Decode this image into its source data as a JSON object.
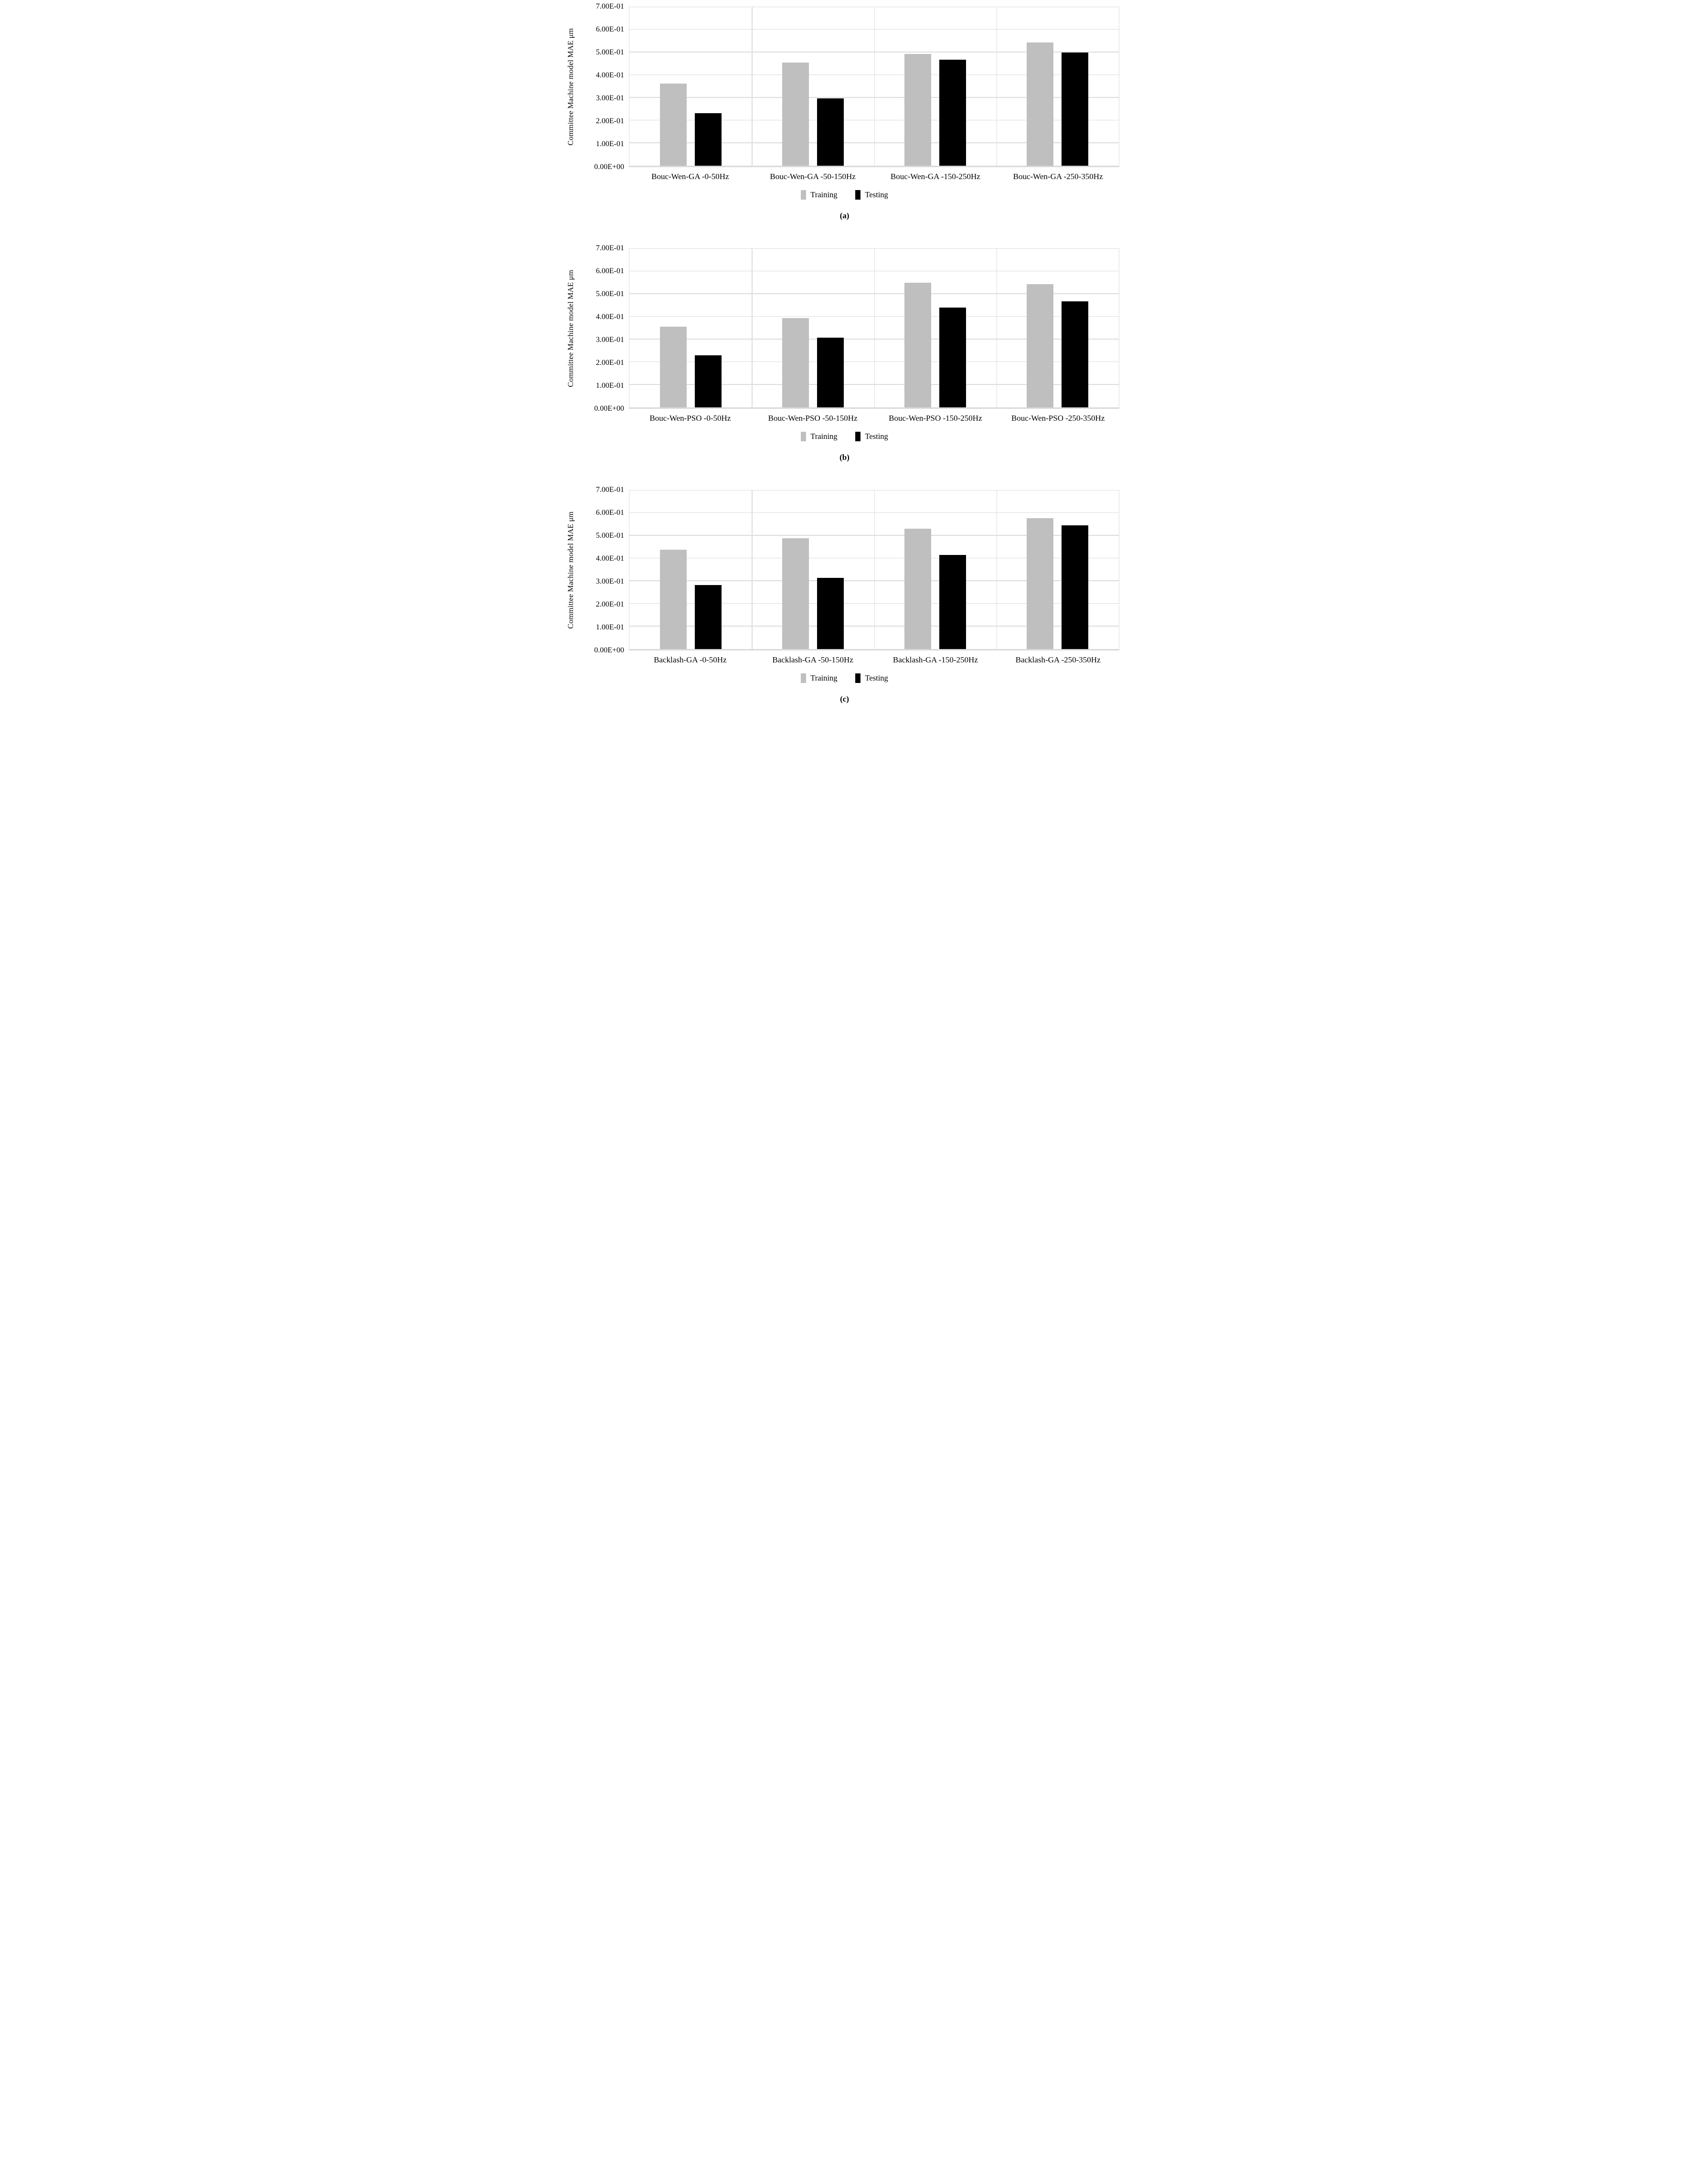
{
  "page": {
    "background": "#ffffff"
  },
  "colors": {
    "training": "#BFBFBF",
    "testing": "#000000",
    "gridline": "#DCDCDC",
    "axis_line": "#D9D9D9",
    "text": "#000000"
  },
  "legend": [
    {
      "name": "Training",
      "color_key": "training"
    },
    {
      "name": "Testing",
      "color_key": "testing"
    }
  ],
  "y_axis": {
    "title": "Committee Machine model MAE μm",
    "min": 0,
    "max": 0.7,
    "tick_labels": [
      "0.00E+00",
      "1.00E-01",
      "2.00E-01",
      "3.00E-01",
      "4.00E-01",
      "5.00E-01",
      "6.00E-01",
      "7.00E-01"
    ]
  },
  "chart_data": [
    {
      "type": "bar",
      "caption": "(a)",
      "title": "",
      "xlabel": "",
      "ylabel": "Committee Machine model MAE μm",
      "ylim": [
        0,
        0.7
      ],
      "grid": true,
      "legend_position": "bottom",
      "categories": [
        "Bouc-Wen-GA -0-50Hz",
        "Bouc-Wen-GA -50-150Hz",
        "Bouc-Wen-GA -150-250Hz",
        "Bouc-Wen-GA -250-350Hz"
      ],
      "series": [
        {
          "name": "Training",
          "values": [
            0.363,
            0.455,
            0.494,
            0.545
          ]
        },
        {
          "name": "Testing",
          "values": [
            0.232,
            0.297,
            0.469,
            0.499
          ]
        }
      ]
    },
    {
      "type": "bar",
      "caption": "(b)",
      "title": "",
      "xlabel": "",
      "ylabel": "Committee Machine model MAE μm",
      "ylim": [
        0,
        0.7
      ],
      "grid": true,
      "legend_position": "bottom",
      "categories": [
        "Bouc-Wen-PSO -0-50Hz",
        "Bouc-Wen-PSO -50-150Hz",
        "Bouc-Wen-PSO -150-250Hz",
        "Bouc-Wen-PSO -250-350Hz"
      ],
      "series": [
        {
          "name": "Training",
          "values": [
            0.357,
            0.395,
            0.551,
            0.544
          ]
        },
        {
          "name": "Testing",
          "values": [
            0.23,
            0.308,
            0.441,
            0.469
          ]
        }
      ]
    },
    {
      "type": "bar",
      "caption": "(c)",
      "title": "",
      "xlabel": "",
      "ylabel": "Committee Machine model MAE μm",
      "ylim": [
        0,
        0.7
      ],
      "grid": true,
      "legend_position": "bottom",
      "categories": [
        "Backlash-GA -0-50Hz",
        "Backlash-GA -50-150Hz",
        "Backlash-GA -150-250Hz",
        "Backlash-GA -250-350Hz"
      ],
      "series": [
        {
          "name": "Training",
          "values": [
            0.439,
            0.49,
            0.531,
            0.578
          ]
        },
        {
          "name": "Testing",
          "values": [
            0.283,
            0.315,
            0.416,
            0.546
          ]
        }
      ]
    }
  ]
}
